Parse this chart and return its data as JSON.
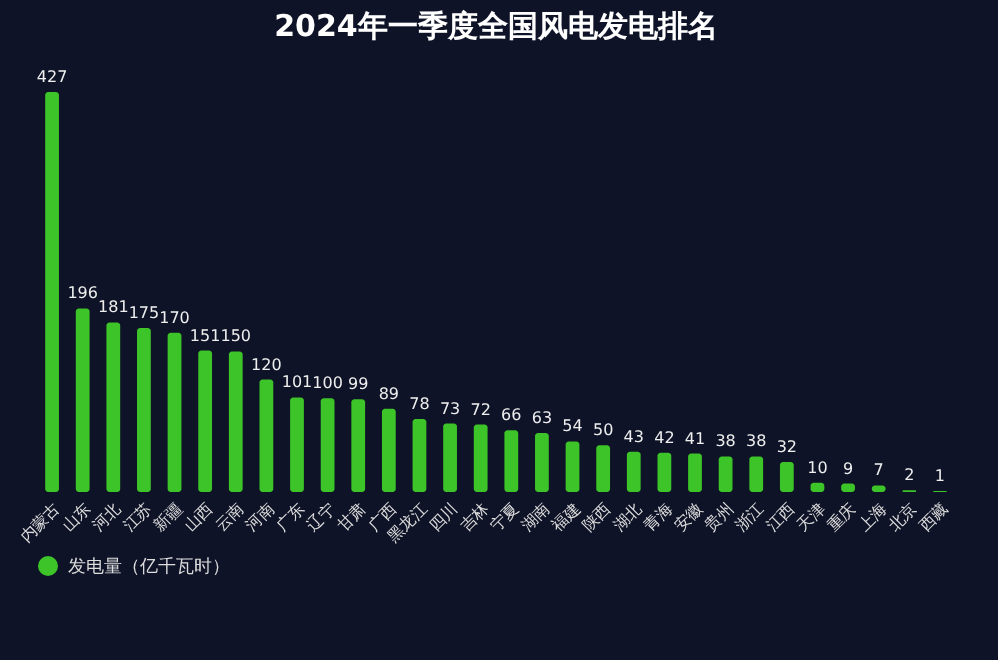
{
  "chart_data": {
    "type": "bar",
    "title": "2024年一季度全国风电发电排名",
    "categories": [
      "内蒙古",
      "山东",
      "河北",
      "江苏",
      "新疆",
      "山西",
      "云南",
      "河南",
      "广东",
      "辽宁",
      "甘肃",
      "广西",
      "黑龙江",
      "四川",
      "吉林",
      "宁夏",
      "湖南",
      "福建",
      "陕西",
      "湖北",
      "青海",
      "安徽",
      "贵州",
      "浙江",
      "江西",
      "天津",
      "重庆",
      "上海",
      "北京",
      "西藏"
    ],
    "series": [
      {
        "name": "发电量（亿千瓦时）",
        "color": "#3cc428",
        "values": [
          427,
          196,
          181,
          175,
          170,
          151,
          150,
          120,
          101,
          100,
          99,
          89,
          78,
          73,
          72,
          66,
          63,
          54,
          50,
          43,
          42,
          41,
          38,
          38,
          32,
          10,
          9,
          7,
          2,
          1
        ]
      }
    ],
    "data_labels": true,
    "legend": "bottom"
  }
}
